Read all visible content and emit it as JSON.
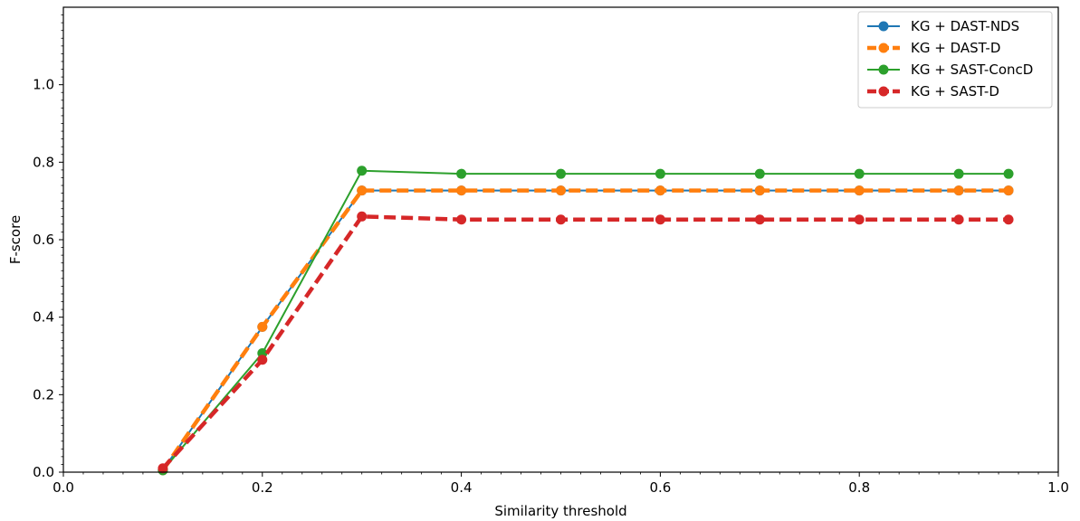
{
  "chart_data": {
    "type": "line",
    "xlabel": "Similarity threshold",
    "ylabel": "F-score",
    "xlim": [
      0.0,
      1.0
    ],
    "ylim": [
      0.0,
      1.2
    ],
    "x_ticks": [
      0.0,
      0.2,
      0.4,
      0.6,
      0.8,
      1.0
    ],
    "x_tick_labels": [
      "0.0",
      "0.2",
      "0.4",
      "0.6",
      "0.8",
      "1.0"
    ],
    "y_ticks": [
      0.0,
      0.2,
      0.4,
      0.6,
      0.8,
      1.0
    ],
    "y_tick_labels": [
      "0.0",
      "0.2",
      "0.4",
      "0.6",
      "0.8",
      "1.0"
    ],
    "grid": false,
    "legend_position": "top-right",
    "x": [
      0.1,
      0.2,
      0.3,
      0.4,
      0.5,
      0.6,
      0.7,
      0.8,
      0.9,
      0.95
    ],
    "series": [
      {
        "name": "KG + DAST-NDS",
        "color": "#1f77b4",
        "style": "solid",
        "values": [
          0.005,
          0.375,
          0.727,
          0.727,
          0.727,
          0.727,
          0.727,
          0.727,
          0.727,
          0.727
        ]
      },
      {
        "name": "KG + DAST-D",
        "color": "#ff7f0e",
        "style": "dashed",
        "values": [
          0.005,
          0.375,
          0.727,
          0.727,
          0.727,
          0.727,
          0.727,
          0.727,
          0.727,
          0.727
        ]
      },
      {
        "name": "KG + SAST-ConcD",
        "color": "#2ca02c",
        "style": "solid",
        "values": [
          0.005,
          0.307,
          0.778,
          0.77,
          0.77,
          0.77,
          0.77,
          0.77,
          0.77,
          0.77
        ]
      },
      {
        "name": "KG + SAST-D",
        "color": "#d62728",
        "style": "dashed",
        "values": [
          0.01,
          0.29,
          0.66,
          0.652,
          0.652,
          0.652,
          0.652,
          0.652,
          0.652,
          0.652
        ]
      }
    ]
  }
}
